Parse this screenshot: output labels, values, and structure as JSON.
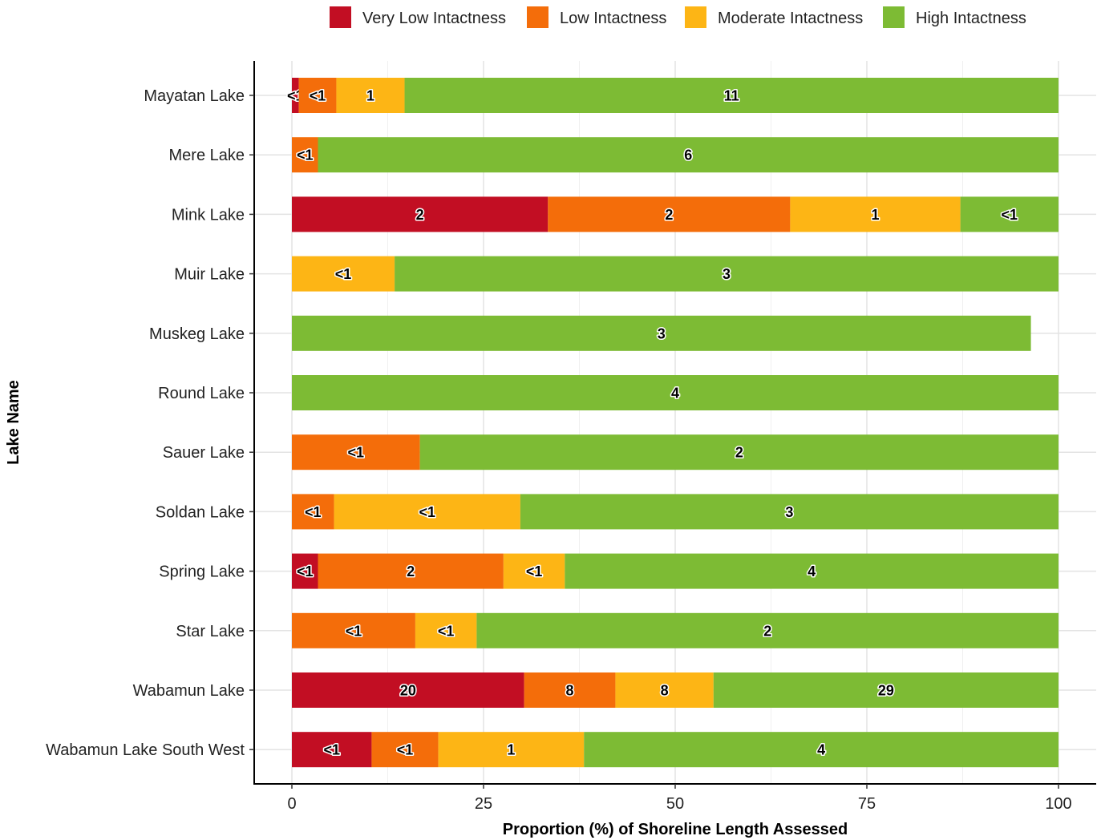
{
  "chart_data": {
    "type": "bar",
    "orientation": "horizontal",
    "stacked": true,
    "title": "",
    "xlabel": "Proportion (%) of Shoreline Length Assessed",
    "ylabel": "Lake Name",
    "xlim": [
      0,
      100
    ],
    "xticks": [
      "0",
      "25",
      "50",
      "75",
      "100"
    ],
    "grid": true,
    "legend_position": "top",
    "categories": [
      "Mayatan Lake",
      "Mere Lake",
      "Mink Lake",
      "Muir Lake",
      "Muskeg Lake",
      "Round Lake",
      "Sauer Lake",
      "Soldan Lake",
      "Spring Lake",
      "Star Lake",
      "Wabamun Lake",
      "Wabamun Lake South West"
    ],
    "series": [
      {
        "name": "Very Low Intactness",
        "color": "#C20E23",
        "values": [
          0.9,
          0,
          33.4,
          0,
          0,
          0,
          0,
          0,
          3.4,
          0,
          30.3,
          10.4
        ],
        "labels": [
          "<1",
          "",
          "2",
          "",
          "",
          "",
          "",
          "",
          "<1",
          "",
          "20",
          "<1"
        ]
      },
      {
        "name": "Low Intactness",
        "color": "#F46D0A",
        "values": [
          4.9,
          3.4,
          31.6,
          0,
          0,
          0,
          16.7,
          5.5,
          24.2,
          16.1,
          11.9,
          8.7
        ],
        "labels": [
          "<1",
          "<1",
          "2",
          "",
          "",
          "",
          "<1",
          "<1",
          "2",
          "<1",
          "8",
          "<1"
        ]
      },
      {
        "name": "Moderate Intactness",
        "color": "#FDB515",
        "values": [
          8.9,
          0,
          22.2,
          13.4,
          0,
          0,
          0,
          24.3,
          8.0,
          8.0,
          12.8,
          19.0
        ],
        "labels": [
          "1",
          "",
          "1",
          "<1",
          "",
          "",
          "",
          "<1",
          "<1",
          "<1",
          "8",
          "1"
        ]
      },
      {
        "name": "High Intactness",
        "color": "#7DBB34",
        "values": [
          85.3,
          96.6,
          12.8,
          86.6,
          96.4,
          100,
          83.3,
          70.2,
          64.4,
          75.9,
          45.0,
          61.9
        ],
        "labels": [
          "11",
          "6",
          "<1",
          "3",
          "3",
          "4",
          "2",
          "3",
          "4",
          "2",
          "29",
          "4"
        ]
      }
    ]
  }
}
